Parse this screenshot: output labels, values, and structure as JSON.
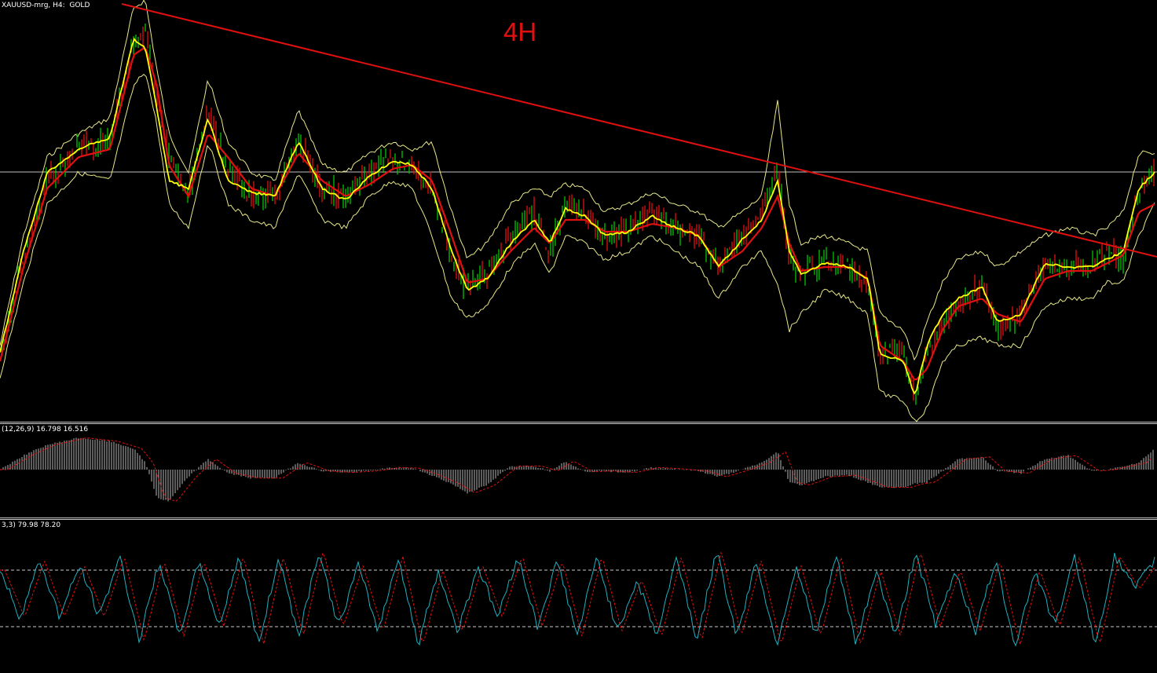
{
  "header": {
    "symbol_label": "XAUUSD-mrg, H4:  GOLD",
    "timeframe_label": "4H"
  },
  "macd": {
    "label": "(12,26,9) 16.798 16.516"
  },
  "stochastic": {
    "label": "3,3) 79.98 78.20"
  },
  "colors": {
    "background": "#000000",
    "bull_candle": "#00c800",
    "bear_candle": "#e01010",
    "fast_ma": "#ffff00",
    "slow_ma": "#e01010",
    "bands": "#e8e88a",
    "trendline": "#e01010",
    "hline": "#c0c0c0",
    "macd_hist": "#b8b8b8",
    "macd_signal": "#e01010",
    "stoch_main": "#20b0c0",
    "stoch_signal": "#e01010",
    "stoch_levels": "#c8c8c8"
  },
  "chart_data": [
    {
      "type": "line",
      "name": "price",
      "x": [
        0,
        30,
        60,
        100,
        140,
        170,
        185,
        200,
        215,
        240,
        265,
        290,
        320,
        350,
        380,
        410,
        440,
        470,
        500,
        525,
        550,
        575,
        595,
        620,
        650,
        680,
        700,
        720,
        745,
        770,
        800,
        830,
        860,
        890,
        915,
        945,
        970,
        990,
        1005,
        1020,
        1050,
        1080,
        1105,
        1120,
        1150,
        1165,
        1180,
        1200,
        1220,
        1250,
        1270,
        1300,
        1330,
        1360,
        1390,
        1410,
        1430,
        1450,
        1470
      ],
      "price_y": [
        455,
        330,
        230,
        190,
        180,
        60,
        40,
        120,
        200,
        250,
        140,
        220,
        250,
        250,
        180,
        240,
        250,
        220,
        200,
        215,
        240,
        330,
        370,
        350,
        300,
        270,
        320,
        260,
        270,
        300,
        290,
        270,
        290,
        300,
        340,
        300,
        270,
        210,
        330,
        350,
        330,
        340,
        360,
        450,
        450,
        505,
        450,
        410,
        390,
        360,
        420,
        400,
        340,
        340,
        340,
        320,
        330,
        240,
        220
      ],
      "macd_hist": [
        0,
        20,
        35,
        45,
        40,
        30,
        10,
        -40,
        -45,
        -10,
        15,
        -5,
        -12,
        -12,
        10,
        -2,
        -4,
        -2,
        3,
        2,
        -8,
        -20,
        -33,
        -22,
        5,
        5,
        -2,
        12,
        -3,
        -2,
        -4,
        3,
        1,
        -2,
        -10,
        0,
        10,
        25,
        -18,
        -22,
        -10,
        -8,
        -18,
        -25,
        -25,
        -20,
        -18,
        -2,
        15,
        18,
        -2,
        -5,
        15,
        20,
        -2,
        0,
        5,
        10,
        30
      ],
      "stoch_main": [
        80,
        30,
        90,
        30,
        85,
        30,
        95,
        5,
        90,
        10,
        90,
        20,
        95,
        0,
        95,
        10,
        100,
        20,
        85,
        15,
        95,
        0,
        80,
        15,
        85,
        30,
        95,
        20,
        90,
        10,
        95,
        15,
        70,
        10,
        95,
        5,
        100,
        10,
        90,
        0,
        85,
        10,
        95,
        0,
        80,
        10,
        100,
        20,
        80,
        15,
        90,
        0,
        80,
        20,
        95,
        0,
        95,
        60,
        90
      ],
      "upper_band_y": [
        440,
        300,
        200,
        170,
        150,
        10,
        0,
        90,
        170,
        220,
        100,
        180,
        220,
        230,
        140,
        210,
        220,
        195,
        180,
        190,
        180,
        270,
        330,
        310,
        260,
        240,
        250,
        235,
        240,
        270,
        260,
        245,
        260,
        270,
        290,
        270,
        250,
        130,
        260,
        310,
        300,
        310,
        320,
        400,
        420,
        460,
        410,
        360,
        330,
        320,
        340,
        320,
        300,
        290,
        300,
        290,
        270,
        195,
        195
      ],
      "lower_band_y": [
        480,
        360,
        260,
        220,
        230,
        110,
        90,
        160,
        260,
        290,
        180,
        260,
        280,
        290,
        220,
        280,
        290,
        250,
        230,
        240,
        300,
        380,
        405,
        390,
        340,
        310,
        350,
        300,
        310,
        330,
        320,
        300,
        320,
        340,
        380,
        340,
        320,
        360,
        420,
        400,
        370,
        380,
        400,
        500,
        510,
        537,
        520,
        460,
        440,
        430,
        440,
        440,
        390,
        380,
        380,
        360,
        360,
        300,
        260
      ],
      "fast_ma_y": [
        450,
        320,
        220,
        190,
        175,
        50,
        60,
        140,
        230,
        240,
        150,
        230,
        245,
        250,
        180,
        240,
        255,
        225,
        205,
        210,
        240,
        320,
        370,
        355,
        310,
        280,
        310,
        265,
        275,
        300,
        295,
        275,
        290,
        300,
        340,
        305,
        280,
        230,
        320,
        350,
        335,
        340,
        355,
        450,
        460,
        505,
        440,
        400,
        380,
        365,
        410,
        400,
        335,
        340,
        340,
        330,
        320,
        240,
        220
      ],
      "slow_ma_y": [
        460,
        340,
        240,
        200,
        190,
        70,
        60,
        110,
        210,
        250,
        170,
        200,
        240,
        250,
        195,
        230,
        250,
        235,
        215,
        210,
        230,
        300,
        360,
        355,
        320,
        290,
        310,
        280,
        280,
        295,
        295,
        285,
        290,
        300,
        340,
        320,
        290,
        250,
        310,
        345,
        340,
        340,
        355,
        440,
        460,
        485,
        470,
        420,
        390,
        380,
        400,
        410,
        355,
        345,
        345,
        335,
        325,
        270,
        260
      ]
    }
  ]
}
